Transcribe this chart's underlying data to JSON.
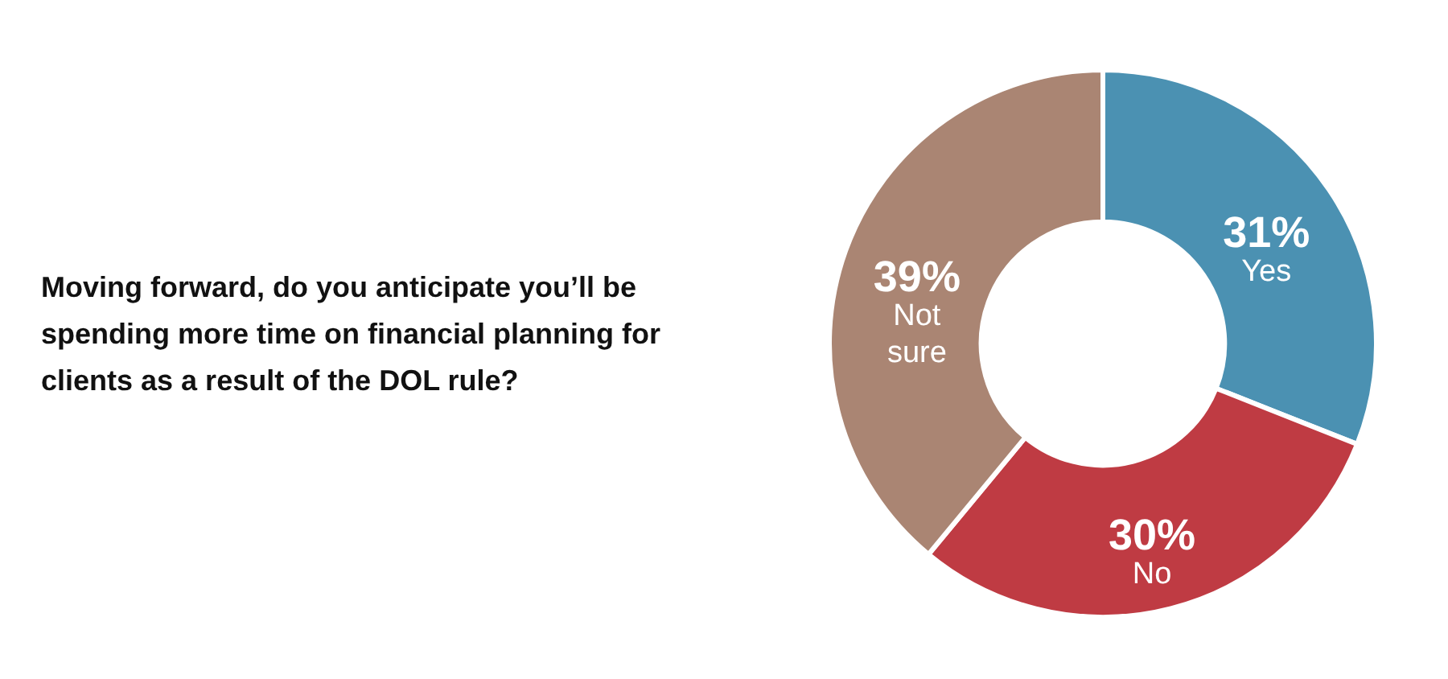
{
  "chart_data": {
    "type": "donut",
    "title": "Moving forward, do you anticipate you’ll be spending more time on financial planning for clients as a result of the DOL rule?",
    "categories": [
      "Yes",
      "No",
      "Not sure"
    ],
    "values": [
      31,
      30,
      39
    ],
    "colors": [
      "#4b91b2",
      "#bf3b43",
      "#aa8573"
    ],
    "value_labels": [
      "31%",
      "30%",
      "39%"
    ]
  }
}
